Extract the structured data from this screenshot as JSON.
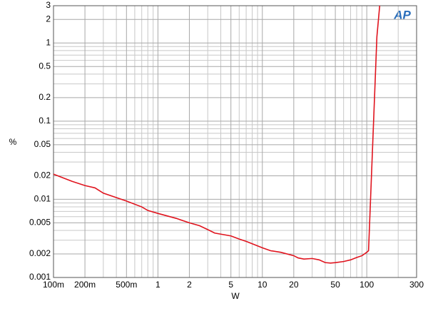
{
  "chart_data": {
    "type": "line",
    "xlabel": "W",
    "ylabel": "%",
    "logo": "AP",
    "xscale": "log",
    "yscale": "log",
    "grid": true,
    "xlim": [
      0.1,
      300
    ],
    "ylim": [
      0.001,
      3
    ],
    "xticks": [
      {
        "value": 0.1,
        "label": "100m"
      },
      {
        "value": 0.2,
        "label": "200m"
      },
      {
        "value": 0.5,
        "label": "500m"
      },
      1,
      2,
      5,
      10,
      20,
      50,
      100,
      300
    ],
    "yticks": [
      0.001,
      0.002,
      0.005,
      0.01,
      0.02,
      0.05,
      0.1,
      0.2,
      0.5,
      1,
      2,
      3
    ],
    "x_minor_ticks": [
      0.3,
      0.4,
      0.6,
      0.7,
      0.8,
      0.9,
      3,
      4,
      6,
      7,
      8,
      9,
      30,
      40,
      60,
      70,
      80,
      90,
      200
    ],
    "y_minor_ticks": [
      0.003,
      0.004,
      0.006,
      0.007,
      0.008,
      0.009,
      0.03,
      0.04,
      0.06,
      0.07,
      0.08,
      0.09,
      0.3,
      0.4,
      0.6,
      0.7,
      0.8,
      0.9
    ],
    "series": [
      {
        "color": "#e0141e",
        "x": [
          0.1,
          0.15,
          0.2,
          0.25,
          0.3,
          0.5,
          0.7,
          0.8,
          1,
          1.5,
          2,
          2.5,
          3,
          3.5,
          5,
          6,
          7,
          10,
          12,
          15,
          20,
          22,
          25,
          30,
          35,
          40,
          45,
          50,
          60,
          70,
          80,
          90,
          100,
          104,
          125,
          133
        ],
        "values": [
          0.021,
          0.017,
          0.015,
          0.014,
          0.012,
          0.0095,
          0.008,
          0.0072,
          0.0066,
          0.0057,
          0.005,
          0.0046,
          0.0041,
          0.0037,
          0.0034,
          0.0031,
          0.0029,
          0.0024,
          0.0022,
          0.0021,
          0.0019,
          0.00178,
          0.00172,
          0.00175,
          0.00168,
          0.00155,
          0.00153,
          0.00155,
          0.0016,
          0.00168,
          0.0018,
          0.0019,
          0.0021,
          0.0022,
          1.2,
          3
        ]
      }
    ]
  }
}
